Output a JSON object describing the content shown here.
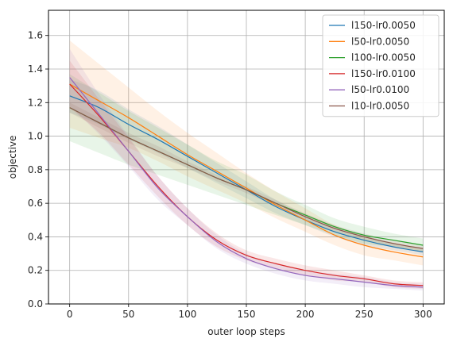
{
  "chart_data": {
    "type": "line",
    "title": "",
    "xlabel": "outer loop steps",
    "ylabel": "objective",
    "xlim": [
      -18,
      318
    ],
    "ylim": [
      0,
      1.75
    ],
    "xticks": [
      0,
      50,
      100,
      150,
      200,
      250,
      300
    ],
    "xtick_labels": [
      "0",
      "50",
      "100",
      "150",
      "200",
      "250",
      "300"
    ],
    "yticks": [
      0.0,
      0.2,
      0.4,
      0.6,
      0.8,
      1.0,
      1.2,
      1.4,
      1.6
    ],
    "ytick_labels": [
      "0.0",
      "0.2",
      "0.4",
      "0.6",
      "0.8",
      "1.0",
      "1.2",
      "1.4",
      "1.6"
    ],
    "grid": true,
    "legend_position": "top-right",
    "x": [
      0,
      25,
      50,
      75,
      100,
      125,
      150,
      175,
      200,
      225,
      250,
      275,
      300
    ],
    "series": [
      {
        "name": "l150-lr0.0050",
        "color": "#1f77b4",
        "values": [
          1.24,
          1.17,
          1.07,
          0.98,
          0.88,
          0.78,
          0.68,
          0.58,
          0.5,
          0.43,
          0.38,
          0.34,
          0.31
        ],
        "spread": [
          0.1,
          0.1,
          0.09,
          0.08,
          0.07,
          0.06,
          0.05,
          0.04,
          0.03,
          0.03,
          0.03,
          0.02,
          0.02
        ]
      },
      {
        "name": "l50-lr0.0050",
        "color": "#ff7f0e",
        "values": [
          1.31,
          1.21,
          1.11,
          1.0,
          0.89,
          0.79,
          0.69,
          0.59,
          0.5,
          0.41,
          0.35,
          0.31,
          0.28
        ],
        "spread": [
          0.26,
          0.22,
          0.18,
          0.15,
          0.13,
          0.11,
          0.09,
          0.08,
          0.07,
          0.06,
          0.06,
          0.05,
          0.05
        ]
      },
      {
        "name": "l100-lr0.0050",
        "color": "#2ca02c",
        "values": [
          1.17,
          1.08,
          0.99,
          0.91,
          0.83,
          0.75,
          0.68,
          0.6,
          0.53,
          0.46,
          0.41,
          0.38,
          0.35
        ],
        "spread": [
          0.2,
          0.18,
          0.16,
          0.14,
          0.12,
          0.1,
          0.09,
          0.07,
          0.06,
          0.05,
          0.05,
          0.04,
          0.04
        ]
      },
      {
        "name": "l150-lr0.0100",
        "color": "#d62728",
        "values": [
          1.31,
          1.12,
          0.91,
          0.7,
          0.52,
          0.38,
          0.29,
          0.24,
          0.2,
          0.17,
          0.15,
          0.12,
          0.11
        ],
        "spread": [
          0.14,
          0.1,
          0.08,
          0.06,
          0.05,
          0.04,
          0.03,
          0.03,
          0.03,
          0.03,
          0.02,
          0.02,
          0.02
        ]
      },
      {
        "name": "l50-lr0.0100",
        "color": "#9467bd",
        "values": [
          1.35,
          1.13,
          0.91,
          0.69,
          0.52,
          0.37,
          0.27,
          0.21,
          0.17,
          0.15,
          0.13,
          0.11,
          0.1
        ],
        "spread": [
          0.17,
          0.12,
          0.09,
          0.07,
          0.05,
          0.04,
          0.03,
          0.03,
          0.03,
          0.03,
          0.03,
          0.02,
          0.02
        ]
      },
      {
        "name": "l10-lr0.0050",
        "color": "#8c564b",
        "values": [
          1.17,
          1.08,
          0.99,
          0.91,
          0.83,
          0.75,
          0.68,
          0.6,
          0.52,
          0.45,
          0.4,
          0.36,
          0.33
        ],
        "spread": [
          0.03,
          0.03,
          0.03,
          0.03,
          0.02,
          0.02,
          0.02,
          0.02,
          0.02,
          0.02,
          0.02,
          0.02,
          0.02
        ]
      }
    ]
  }
}
